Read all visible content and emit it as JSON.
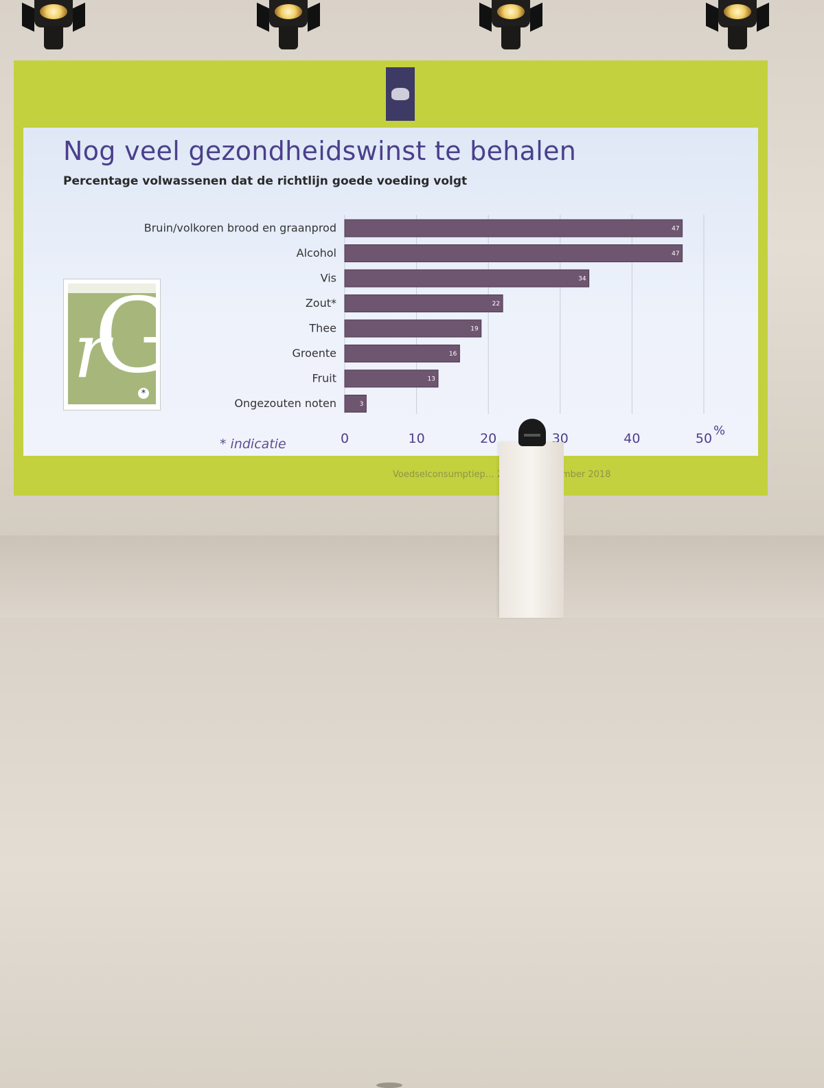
{
  "slide": {
    "title": "Nog veel gezondheidswinst te behalen",
    "subtitle": "Percentage volwassenen dat de richtlijn goede voeding volgt",
    "footnote": "* indicatie",
    "footer": "Voedselconsumptiep… 2016| 20 november 2018",
    "book_mark": "*"
  },
  "colors": {
    "bar": "#6e5570",
    "title": "#4b3f8c",
    "band": "#c3d13e"
  },
  "chart_data": {
    "type": "bar",
    "orientation": "horizontal",
    "title": "Percentage volwassenen dat de richtlijn goede voeding volgt",
    "categories": [
      "Bruin/volkoren brood en graanprod",
      "Alcohol",
      "Vis",
      "Zout*",
      "Thee",
      "Groente",
      "Fruit",
      "Ongezouten noten"
    ],
    "values": [
      47,
      47,
      34,
      22,
      19,
      16,
      13,
      3
    ],
    "data_labels": [
      "47",
      "47",
      "34",
      "22",
      "19",
      "16",
      "13",
      "3"
    ],
    "xlim": [
      0,
      50
    ],
    "xticks": [
      0,
      10,
      20,
      30,
      40,
      50
    ],
    "xtick_labels": [
      "0",
      "10",
      "20",
      "30",
      "40",
      "50"
    ],
    "xunit": "%",
    "grid": "vertical"
  }
}
